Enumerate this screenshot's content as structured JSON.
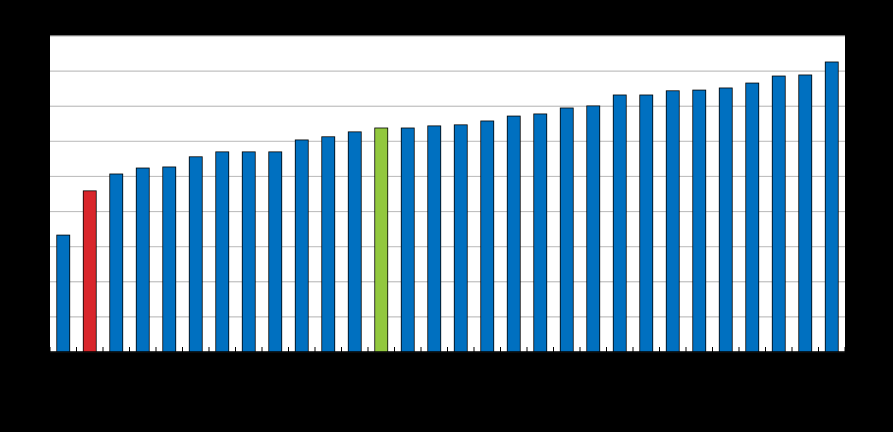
{
  "chart_data": {
    "type": "bar",
    "categories": [
      null,
      null,
      null,
      null,
      null,
      null,
      null,
      null,
      null,
      null,
      null,
      null,
      null,
      null,
      null,
      null,
      null,
      null,
      null,
      null,
      null,
      null,
      null,
      null,
      null,
      null,
      null,
      null,
      null,
      null
    ],
    "values": [
      3.33,
      4.59,
      5.07,
      5.24,
      5.27,
      5.56,
      5.7,
      5.7,
      5.7,
      6.04,
      6.13,
      6.27,
      6.38,
      6.38,
      6.44,
      6.47,
      6.58,
      6.72,
      6.78,
      6.95,
      7.01,
      7.32,
      7.32,
      7.44,
      7.46,
      7.52,
      7.66,
      7.86,
      7.89,
      8.26
    ],
    "colors": [
      "#0070c0",
      "#d9262b",
      "#0070c0",
      "#0070c0",
      "#0070c0",
      "#0070c0",
      "#0070c0",
      "#0070c0",
      "#0070c0",
      "#0070c0",
      "#0070c0",
      "#0070c0",
      "#92c83e",
      "#0070c0",
      "#0070c0",
      "#0070c0",
      "#0070c0",
      "#0070c0",
      "#0070c0",
      "#0070c0",
      "#0070c0",
      "#0070c0",
      "#0070c0",
      "#0070c0",
      "#0070c0",
      "#0070c0",
      "#0070c0",
      "#0070c0",
      "#0070c0",
      "#0070c0"
    ],
    "ylim": [
      0,
      9
    ],
    "yticks": [
      0,
      1,
      2,
      3,
      4,
      5,
      6,
      7,
      8,
      9
    ],
    "grid": true
  }
}
